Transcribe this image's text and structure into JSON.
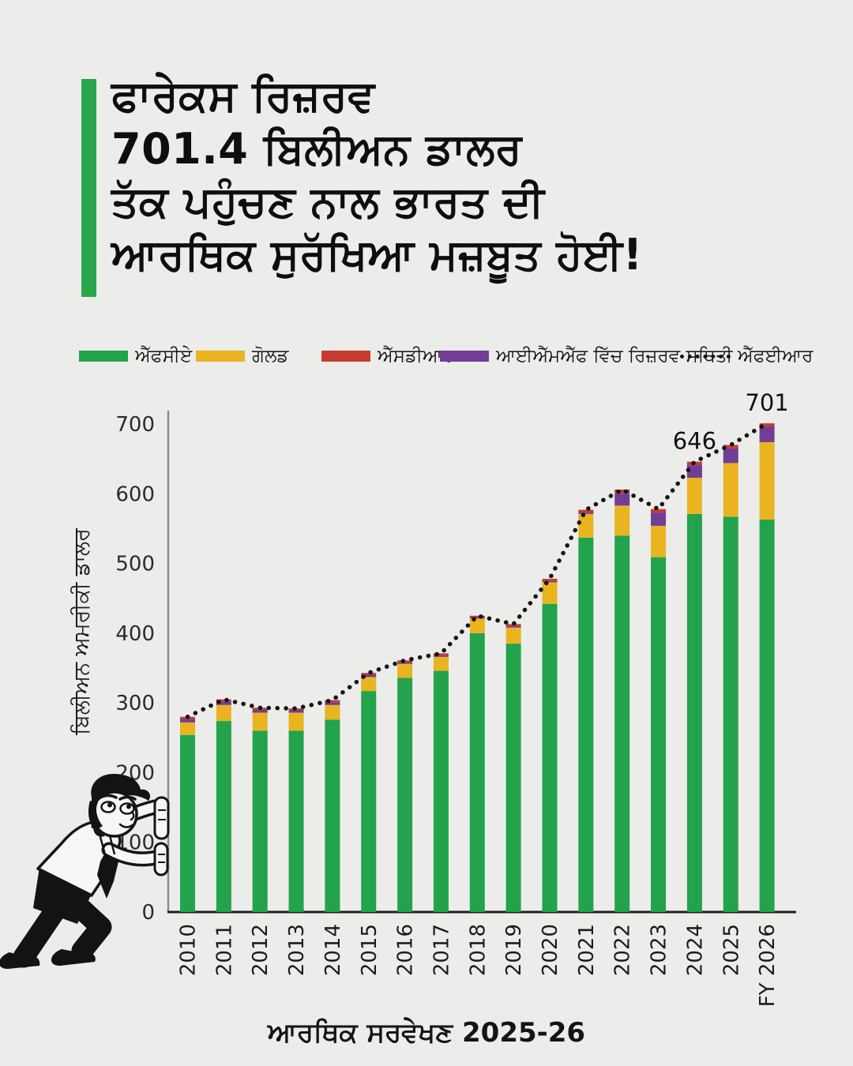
{
  "page": {
    "background_color": "#ececeb"
  },
  "header": {
    "accent_color": "#2aa74d",
    "title": "ਫਾਰੇਕਸ ਰਿਜ਼ਰਵ\n701.4 ਬਿਲੀਅਨ ਡਾਲਰ\nਤੱਕ ਪਹੁੰਚਣ ਨਾਲ ਭਾਰਤ ਦੀ\nਆਰਥਿਕ ਸੁਰੱਖਿਆ ਮਜ਼ਬੂਤ ਹੋਈ!"
  },
  "legend": {
    "items": [
      {
        "label": "ਐੱਫਸੀਏ",
        "color": "#22a34c",
        "type": "swatch"
      },
      {
        "label": "ਗੋਲਡ",
        "color": "#e9b41f",
        "type": "swatch"
      },
      {
        "label": "ਐੱਸਡੀਆਰ",
        "color": "#c43d2e",
        "type": "swatch"
      },
      {
        "label": "ਆਈਐੱਮਐੱਫ ਵਿੱਚ ਰਿਜ਼ਰਵ ਸਥਿਤੀ",
        "color": "#703d97",
        "type": "swatch"
      },
      {
        "label": "ਐੱਫਈਆਰ",
        "color": "#141414",
        "type": "dotted-line"
      }
    ]
  },
  "chart_data": {
    "type": "bar",
    "stacked": true,
    "title": "",
    "xlabel": "",
    "ylabel": "ਬਿਲੀਅਨ ਅਮਰੀਕੀ ਡਾਲਰ",
    "ylim": [
      0,
      700
    ],
    "yticks": [
      0,
      100,
      200,
      300,
      400,
      500,
      600,
      700
    ],
    "grid": false,
    "legend_position": "top",
    "categories": [
      "2010",
      "2011",
      "2012",
      "2013",
      "2014",
      "2015",
      "2016",
      "2017",
      "2018",
      "2019",
      "2020",
      "2021",
      "2022",
      "2023",
      "2024",
      "2025",
      "FY 2026"
    ],
    "stack_order_bottom_to_top": [
      "ਐੱਫਸੀਏ",
      "ਗੋਲਡ",
      "ਆਈਐੱਮਐੱਫ ਵਿੱਚ ਰਿਜ਼ਰਵ ਸਥਿਤੀ",
      "ਐੱਸਡੀਆਰ"
    ],
    "series": [
      {
        "name": "ਐੱਫਸੀਏ",
        "color": "#22a34c",
        "values": [
          254,
          274,
          260,
          260,
          276,
          317,
          336,
          346,
          400,
          385,
          442,
          537,
          540,
          509,
          571,
          567,
          563
        ]
      },
      {
        "name": "ਗੋਲਡ",
        "color": "#e9b41f",
        "values": [
          18,
          23,
          26,
          26,
          21,
          20,
          20,
          20,
          21,
          23,
          31,
          34,
          43,
          45,
          52,
          77,
          111
        ]
      },
      {
        "name": "ਆਈਐੱਮਐੱਫ ਵਿੱਚ ਰਿਜ਼ਰਵ ਸਥਿਤੀ",
        "color": "#703d97",
        "values": [
          5,
          5,
          4,
          4,
          4,
          4,
          2,
          2,
          2,
          2,
          2,
          2,
          17,
          19,
          18,
          21,
          22
        ]
      },
      {
        "name": "ਐੱਸਡੀਆਰ",
        "color": "#c43d2e",
        "values": [
          3,
          3,
          3,
          2,
          3,
          2,
          3,
          3,
          2,
          3,
          3,
          4,
          6,
          5,
          5,
          5,
          5
        ]
      }
    ],
    "line_series": {
      "name": "ਐੱਫਈਆਰ",
      "style": "dotted",
      "color": "#141414",
      "values": [
        280,
        305,
        293,
        292,
        304,
        343,
        361,
        371,
        425,
        413,
        478,
        577,
        606,
        578,
        646,
        670,
        701
      ]
    },
    "annotations": [
      {
        "category": "2024",
        "text": "646"
      },
      {
        "category": "FY 2026",
        "text": "701"
      }
    ]
  },
  "footer": {
    "text": "ਆਰਥਿਕ ਸਰਵੇਖਣ 2025-26"
  }
}
